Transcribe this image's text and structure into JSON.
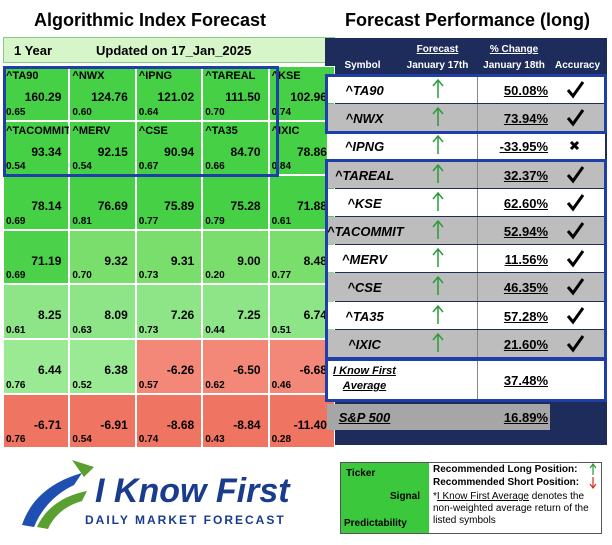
{
  "left": {
    "title": "Algorithmic Index Forecast",
    "horizon": "1 Year",
    "updated": "Updated on 17_Jan_2025",
    "rows": [
      [
        {
          "ticker": "^TA90",
          "signal": "160.29",
          "predictability": "0.65",
          "color": "#46d046"
        },
        {
          "ticker": "^NWX",
          "signal": "124.76",
          "predictability": "0.60",
          "color": "#46d046"
        },
        {
          "ticker": "^IPNG",
          "signal": "121.02",
          "predictability": "0.64",
          "color": "#46d046"
        },
        {
          "ticker": "^TAREAL",
          "signal": "111.50",
          "predictability": "0.70",
          "color": "#46d046"
        },
        {
          "ticker": "^KSE",
          "signal": "102.96",
          "predictability": "0.74",
          "color": "#46d046"
        }
      ],
      [
        {
          "ticker": "^TACOMMIT",
          "signal": "93.34",
          "predictability": "0.54",
          "color": "#46d046"
        },
        {
          "ticker": "^MERV",
          "signal": "92.15",
          "predictability": "0.54",
          "color": "#46d046"
        },
        {
          "ticker": "^CSE",
          "signal": "90.94",
          "predictability": "0.67",
          "color": "#46d046"
        },
        {
          "ticker": "^TA35",
          "signal": "84.70",
          "predictability": "0.66",
          "color": "#46d046"
        },
        {
          "ticker": "^IXIC",
          "signal": "78.86",
          "predictability": "0.84",
          "color": "#46d046"
        }
      ],
      [
        {
          "signal": "78.14",
          "predictability": "0.69",
          "color": "#46d046"
        },
        {
          "signal": "76.69",
          "predictability": "0.81",
          "color": "#46d046"
        },
        {
          "signal": "75.89",
          "predictability": "0.77",
          "color": "#46d046"
        },
        {
          "signal": "75.28",
          "predictability": "0.79",
          "color": "#46d046"
        },
        {
          "signal": "71.88",
          "predictability": "0.61",
          "color": "#46d046"
        }
      ],
      [
        {
          "signal": "71.19",
          "predictability": "0.69",
          "color": "#4cd24a"
        },
        {
          "signal": "9.32",
          "predictability": "0.70",
          "color": "#7ade6c"
        },
        {
          "signal": "9.31",
          "predictability": "0.73",
          "color": "#7ade6c"
        },
        {
          "signal": "9.00",
          "predictability": "0.20",
          "color": "#7ade6c"
        },
        {
          "signal": "8.48",
          "predictability": "0.77",
          "color": "#7ade6c"
        }
      ],
      [
        {
          "signal": "8.25",
          "predictability": "0.61",
          "color": "#8ee588"
        },
        {
          "signal": "8.09",
          "predictability": "0.63",
          "color": "#8ee588"
        },
        {
          "signal": "7.26",
          "predictability": "0.73",
          "color": "#8ee588"
        },
        {
          "signal": "7.25",
          "predictability": "0.44",
          "color": "#8ee588"
        },
        {
          "signal": "6.74",
          "predictability": "0.51",
          "color": "#8ee588"
        }
      ],
      [
        {
          "signal": "6.44",
          "predictability": "0.76",
          "color": "#9aea94"
        },
        {
          "signal": "6.38",
          "predictability": "0.52",
          "color": "#9aea94"
        },
        {
          "signal": "-6.26",
          "predictability": "0.57",
          "color": "#f48878"
        },
        {
          "signal": "-6.50",
          "predictability": "0.62",
          "color": "#f48878"
        },
        {
          "signal": "-6.68",
          "predictability": "0.46",
          "color": "#f48878"
        }
      ],
      [
        {
          "signal": "-6.71",
          "predictability": "0.76",
          "color": "#f07462"
        },
        {
          "signal": "-6.91",
          "predictability": "0.54",
          "color": "#f07462"
        },
        {
          "signal": "-8.68",
          "predictability": "0.74",
          "color": "#f07462"
        },
        {
          "signal": "-8.84",
          "predictability": "0.43",
          "color": "#f07462"
        },
        {
          "signal": "-11.40",
          "predictability": "0.28",
          "color": "#f07462"
        }
      ]
    ]
  },
  "right": {
    "title": "Forecast Performance (long)",
    "headers": {
      "symbol": "Symbol",
      "forecast": "Forecast",
      "forecast_date": "January 17th",
      "change": "% Change",
      "change_date": "January 18th",
      "accuracy": "Accuracy"
    },
    "rows": [
      {
        "symbol": "^TA90",
        "change": "50.08%",
        "accurate": true
      },
      {
        "symbol": "^NWX",
        "change": "73.94%",
        "accurate": true
      },
      {
        "symbol": "^IPNG",
        "change": "-33.95%",
        "accurate": false
      },
      {
        "symbol": "^TAREAL",
        "change": "32.37%",
        "accurate": true
      },
      {
        "symbol": "^KSE",
        "change": "62.60%",
        "accurate": true
      },
      {
        "symbol": "^TACOMMIT",
        "change": "52.94%",
        "accurate": true
      },
      {
        "symbol": "^MERV",
        "change": "11.56%",
        "accurate": true
      },
      {
        "symbol": "^CSE",
        "change": "46.35%",
        "accurate": true
      },
      {
        "symbol": "^TA35",
        "change": "57.28%",
        "accurate": true
      },
      {
        "symbol": "^IXIC",
        "change": "21.60%",
        "accurate": true
      }
    ],
    "average": {
      "label": "I Know First Average",
      "change": "37.48%"
    },
    "benchmark": {
      "label": "S&P 500",
      "change": "16.89%"
    }
  },
  "legend": {
    "ticker": "Ticker",
    "signal": "Signal",
    "predictability": "Predictability",
    "long": "Recommended Long Position:",
    "short": "Recommended Short Position:",
    "note_link": "I Know First Average",
    "note_text": "denotes the non-weighted average return of the listed symbols"
  },
  "logo": {
    "name": "I Know First",
    "tagline": "Daily Market Forecast"
  }
}
